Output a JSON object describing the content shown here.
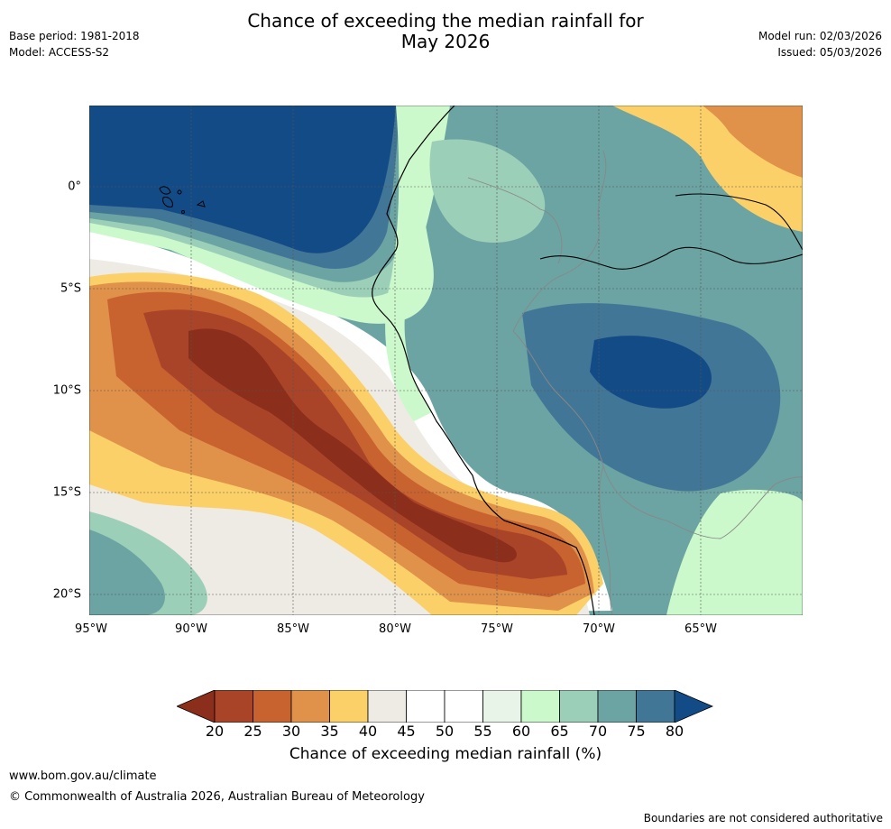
{
  "header": {
    "base_period": "Base period: 1981-2018",
    "model": "Model: ACCESS-S2",
    "title_line1": "Chance of exceeding the median rainfall for",
    "title_line2": "May 2026",
    "model_run": "Model run: 02/03/2026",
    "issued": "Issued: 05/03/2026"
  },
  "map": {
    "x_ticks": [
      "95°W",
      "90°W",
      "85°W",
      "80°W",
      "75°W",
      "70°W",
      "65°W"
    ],
    "y_ticks": [
      "0°",
      "5°S",
      "10°S",
      "15°S",
      "20°S"
    ],
    "lon_range": [
      -95,
      -60
    ],
    "lat_range": [
      4,
      -21
    ]
  },
  "colorbar": {
    "ticks": [
      "20",
      "25",
      "30",
      "35",
      "40",
      "45",
      "50",
      "55",
      "60",
      "65",
      "70",
      "75",
      "80"
    ],
    "colors": [
      "#8b2e1b",
      "#a94428",
      "#c8622f",
      "#e0914a",
      "#fcd068",
      "#eeebe5",
      "#ffffff",
      "#ffffff",
      "#e9f4e9",
      "#cbf9cb",
      "#9ccfb7",
      "#6ca3a3",
      "#427696",
      "#134b87"
    ],
    "label": "Chance of exceeding median rainfall (%)"
  },
  "footer": {
    "url": "www.bom.gov.au/climate",
    "copyright": "© Commonwealth of Australia 2026, Australian Bureau of Meteorology",
    "disclaimer": "Boundaries are not considered authoritative"
  }
}
